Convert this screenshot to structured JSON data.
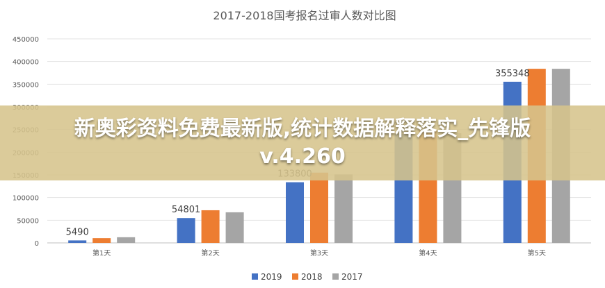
{
  "overlay": {
    "line1": "新奥彩资料免费最新版,统计数据解释落实_先锋版",
    "line2": "v.4.260"
  },
  "chart_data": {
    "type": "bar",
    "title": "2017-2018国考报名过审人数对比图",
    "categories": [
      "第1天",
      "第2天",
      "第3天",
      "第4天",
      "第5天"
    ],
    "series": [
      {
        "name": "2019",
        "values": [
          5490,
          54801,
          133800,
          240315,
          355348
        ],
        "color": "#4472c4"
      },
      {
        "name": "2018",
        "values": [
          10500,
          72000,
          155000,
          248000,
          384000
        ],
        "color": "#ed7d31"
      },
      {
        "name": "2017",
        "values": [
          12500,
          67500,
          151000,
          242000,
          384000
        ],
        "color": "#a5a5a5"
      }
    ],
    "data_labels": [
      {
        "category_index": 0,
        "series_index": 0,
        "text": "5490"
      },
      {
        "category_index": 1,
        "series_index": 0,
        "text": "54801"
      },
      {
        "category_index": 2,
        "series_index": 0,
        "text": "133800"
      },
      {
        "category_index": 3,
        "series_index": 0,
        "text": "240315"
      },
      {
        "category_index": 4,
        "series_index": 0,
        "text": "355348"
      }
    ],
    "ylim": [
      0,
      450000
    ],
    "yticks": [
      0,
      50000,
      100000,
      150000,
      200000,
      250000,
      300000,
      350000,
      400000,
      450000
    ],
    "grid": true,
    "legend": "bottom"
  }
}
